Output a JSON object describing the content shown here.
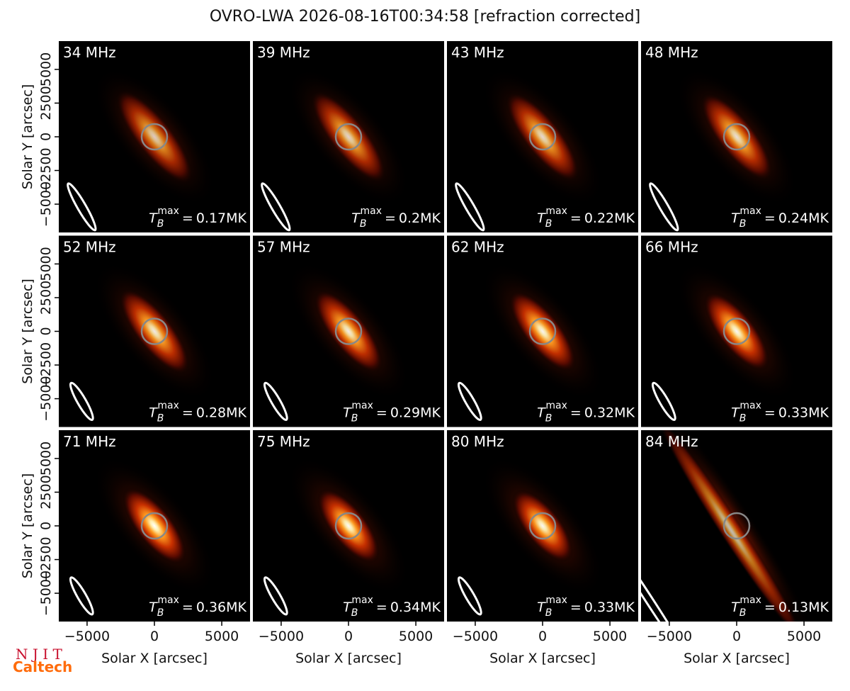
{
  "chart_data": {
    "type": "image-grid",
    "title": "OVRO-LWA 2026-08-16T00:34:58 [refraction corrected]",
    "xlabel": "Solar X [arcsec]",
    "ylabel": "Solar Y [arcsec]",
    "xlim": [
      -7100,
      7100
    ],
    "ylim": [
      -7100,
      7100
    ],
    "xticks": [
      {
        "value": -5000,
        "label": "−5000"
      },
      0,
      5000
    ],
    "yticks": [
      {
        "value": -5000,
        "label": "−5000"
      },
      {
        "value": -2500,
        "label": "−2500"
      },
      0,
      2500,
      5000
    ],
    "annotation_symbol": {
      "base": "T",
      "sub": "B",
      "sup": "max",
      "relation": "="
    },
    "panel_titles": [
      "34 MHz",
      "39 MHz",
      "43 MHz",
      "48 MHz",
      "52 MHz",
      "57 MHz",
      "62 MHz",
      "66 MHz",
      "71 MHz",
      "75 MHz",
      "80 MHz",
      "84 MHz"
    ],
    "values": [
      0.17,
      0.2,
      0.22,
      0.24,
      0.28,
      0.29,
      0.32,
      0.33,
      0.36,
      0.34,
      0.33,
      0.13
    ],
    "value_labels": [
      "0.17MK",
      "0.2MK",
      "0.22MK",
      "0.24MK",
      "0.28MK",
      "0.29MK",
      "0.32MK",
      "0.33MK",
      "0.36MK",
      "0.34MK",
      "0.33MK",
      "0.13MK"
    ]
  },
  "logos": {
    "njit": "N J I T",
    "caltech": "Caltech"
  }
}
